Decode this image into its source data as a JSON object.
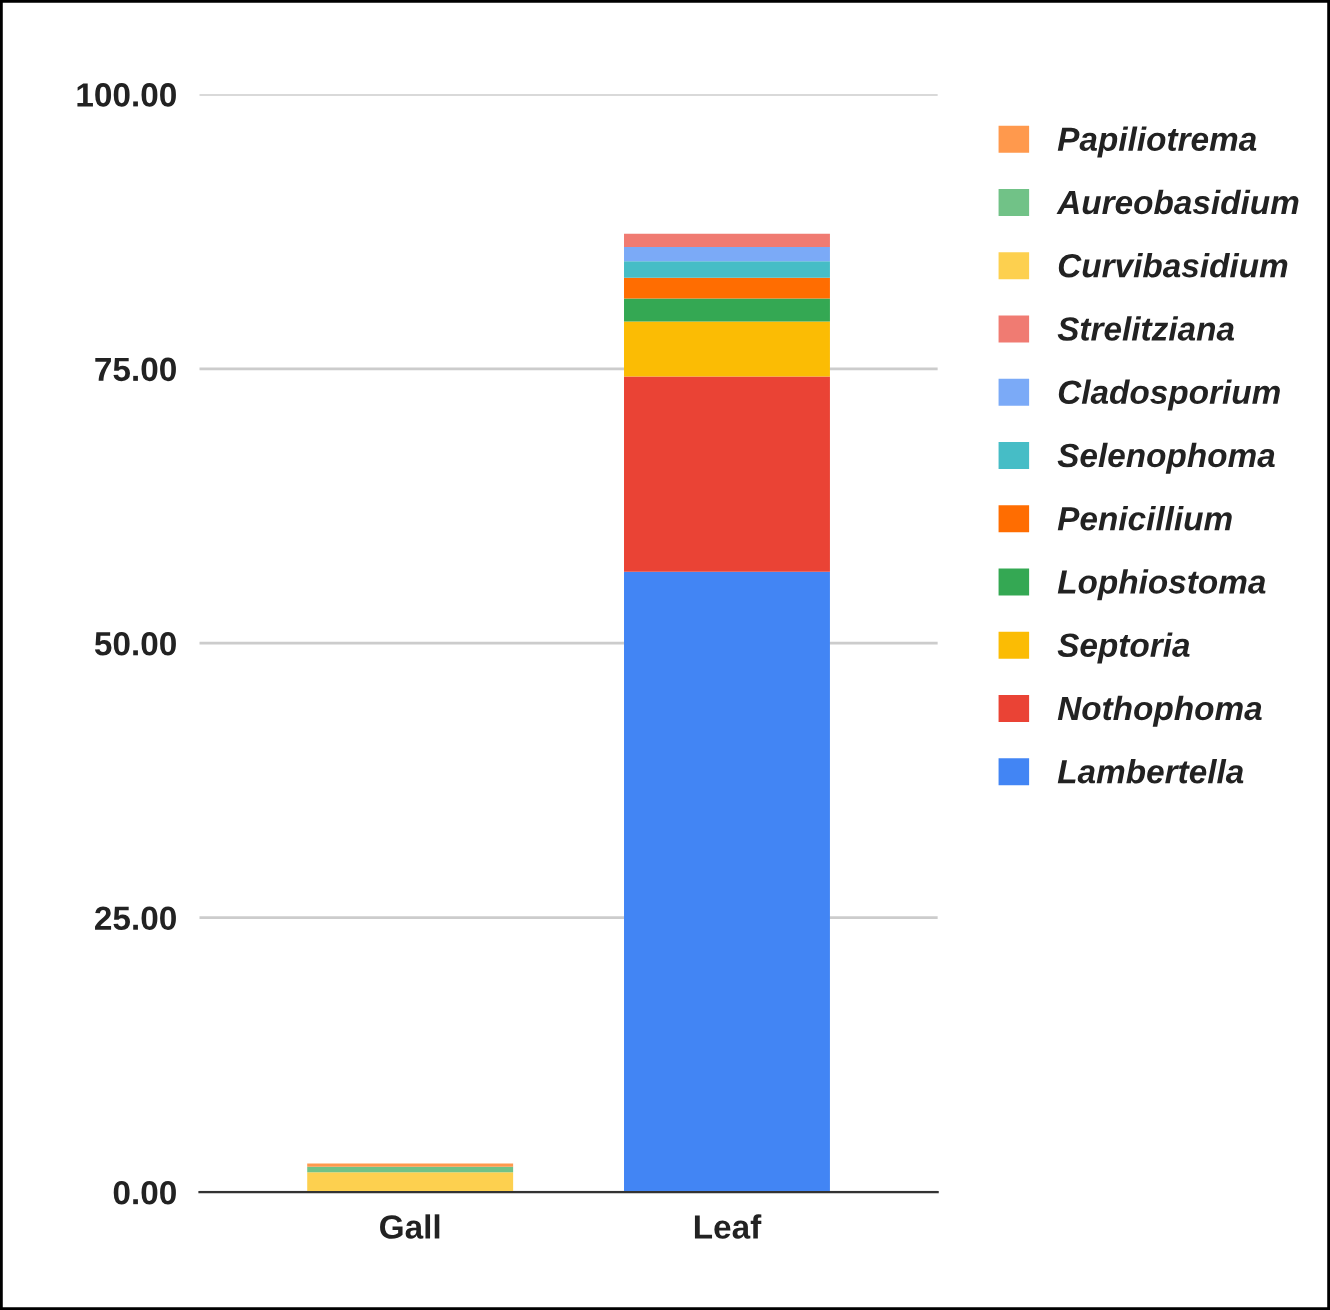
{
  "chart_data": {
    "type": "bar",
    "stacked": true,
    "categories": [
      "Gall",
      "Leaf"
    ],
    "series": [
      {
        "name": "Lambertella",
        "color": "#4285f4",
        "values": [
          0,
          56.5
        ]
      },
      {
        "name": "Nothophoma",
        "color": "#ea4335",
        "values": [
          0,
          17.8
        ]
      },
      {
        "name": "Septoria",
        "color": "#fbbc04",
        "values": [
          0,
          5.0
        ]
      },
      {
        "name": "Lophiostoma",
        "color": "#34a853",
        "values": [
          0,
          2.1
        ]
      },
      {
        "name": "Penicillium",
        "color": "#ff6d01",
        "values": [
          0,
          1.9
        ]
      },
      {
        "name": "Selenophoma",
        "color": "#46bdc6",
        "values": [
          0,
          1.5
        ]
      },
      {
        "name": "Cladosporium",
        "color": "#7baaf7",
        "values": [
          0,
          1.3
        ]
      },
      {
        "name": "Strelitziana",
        "color": "#f07b72",
        "values": [
          0,
          1.2
        ]
      },
      {
        "name": "Curvibasidium",
        "color": "#fdd04f",
        "values": [
          1.8,
          0
        ]
      },
      {
        "name": "Aureobasidium",
        "color": "#71c287",
        "values": [
          0.5,
          0
        ]
      },
      {
        "name": "Papiliotrema",
        "color": "#ff994d",
        "values": [
          0.3,
          0
        ]
      }
    ],
    "ylim": [
      0,
      100
    ],
    "yticks": [
      {
        "value": 0,
        "label": "0.00"
      },
      {
        "value": 25,
        "label": "25.00"
      },
      {
        "value": 50,
        "label": "50.00"
      },
      {
        "value": 75,
        "label": "75.00"
      },
      {
        "value": 100,
        "label": "100.00"
      }
    ],
    "grid": "y",
    "legend": "top right"
  }
}
